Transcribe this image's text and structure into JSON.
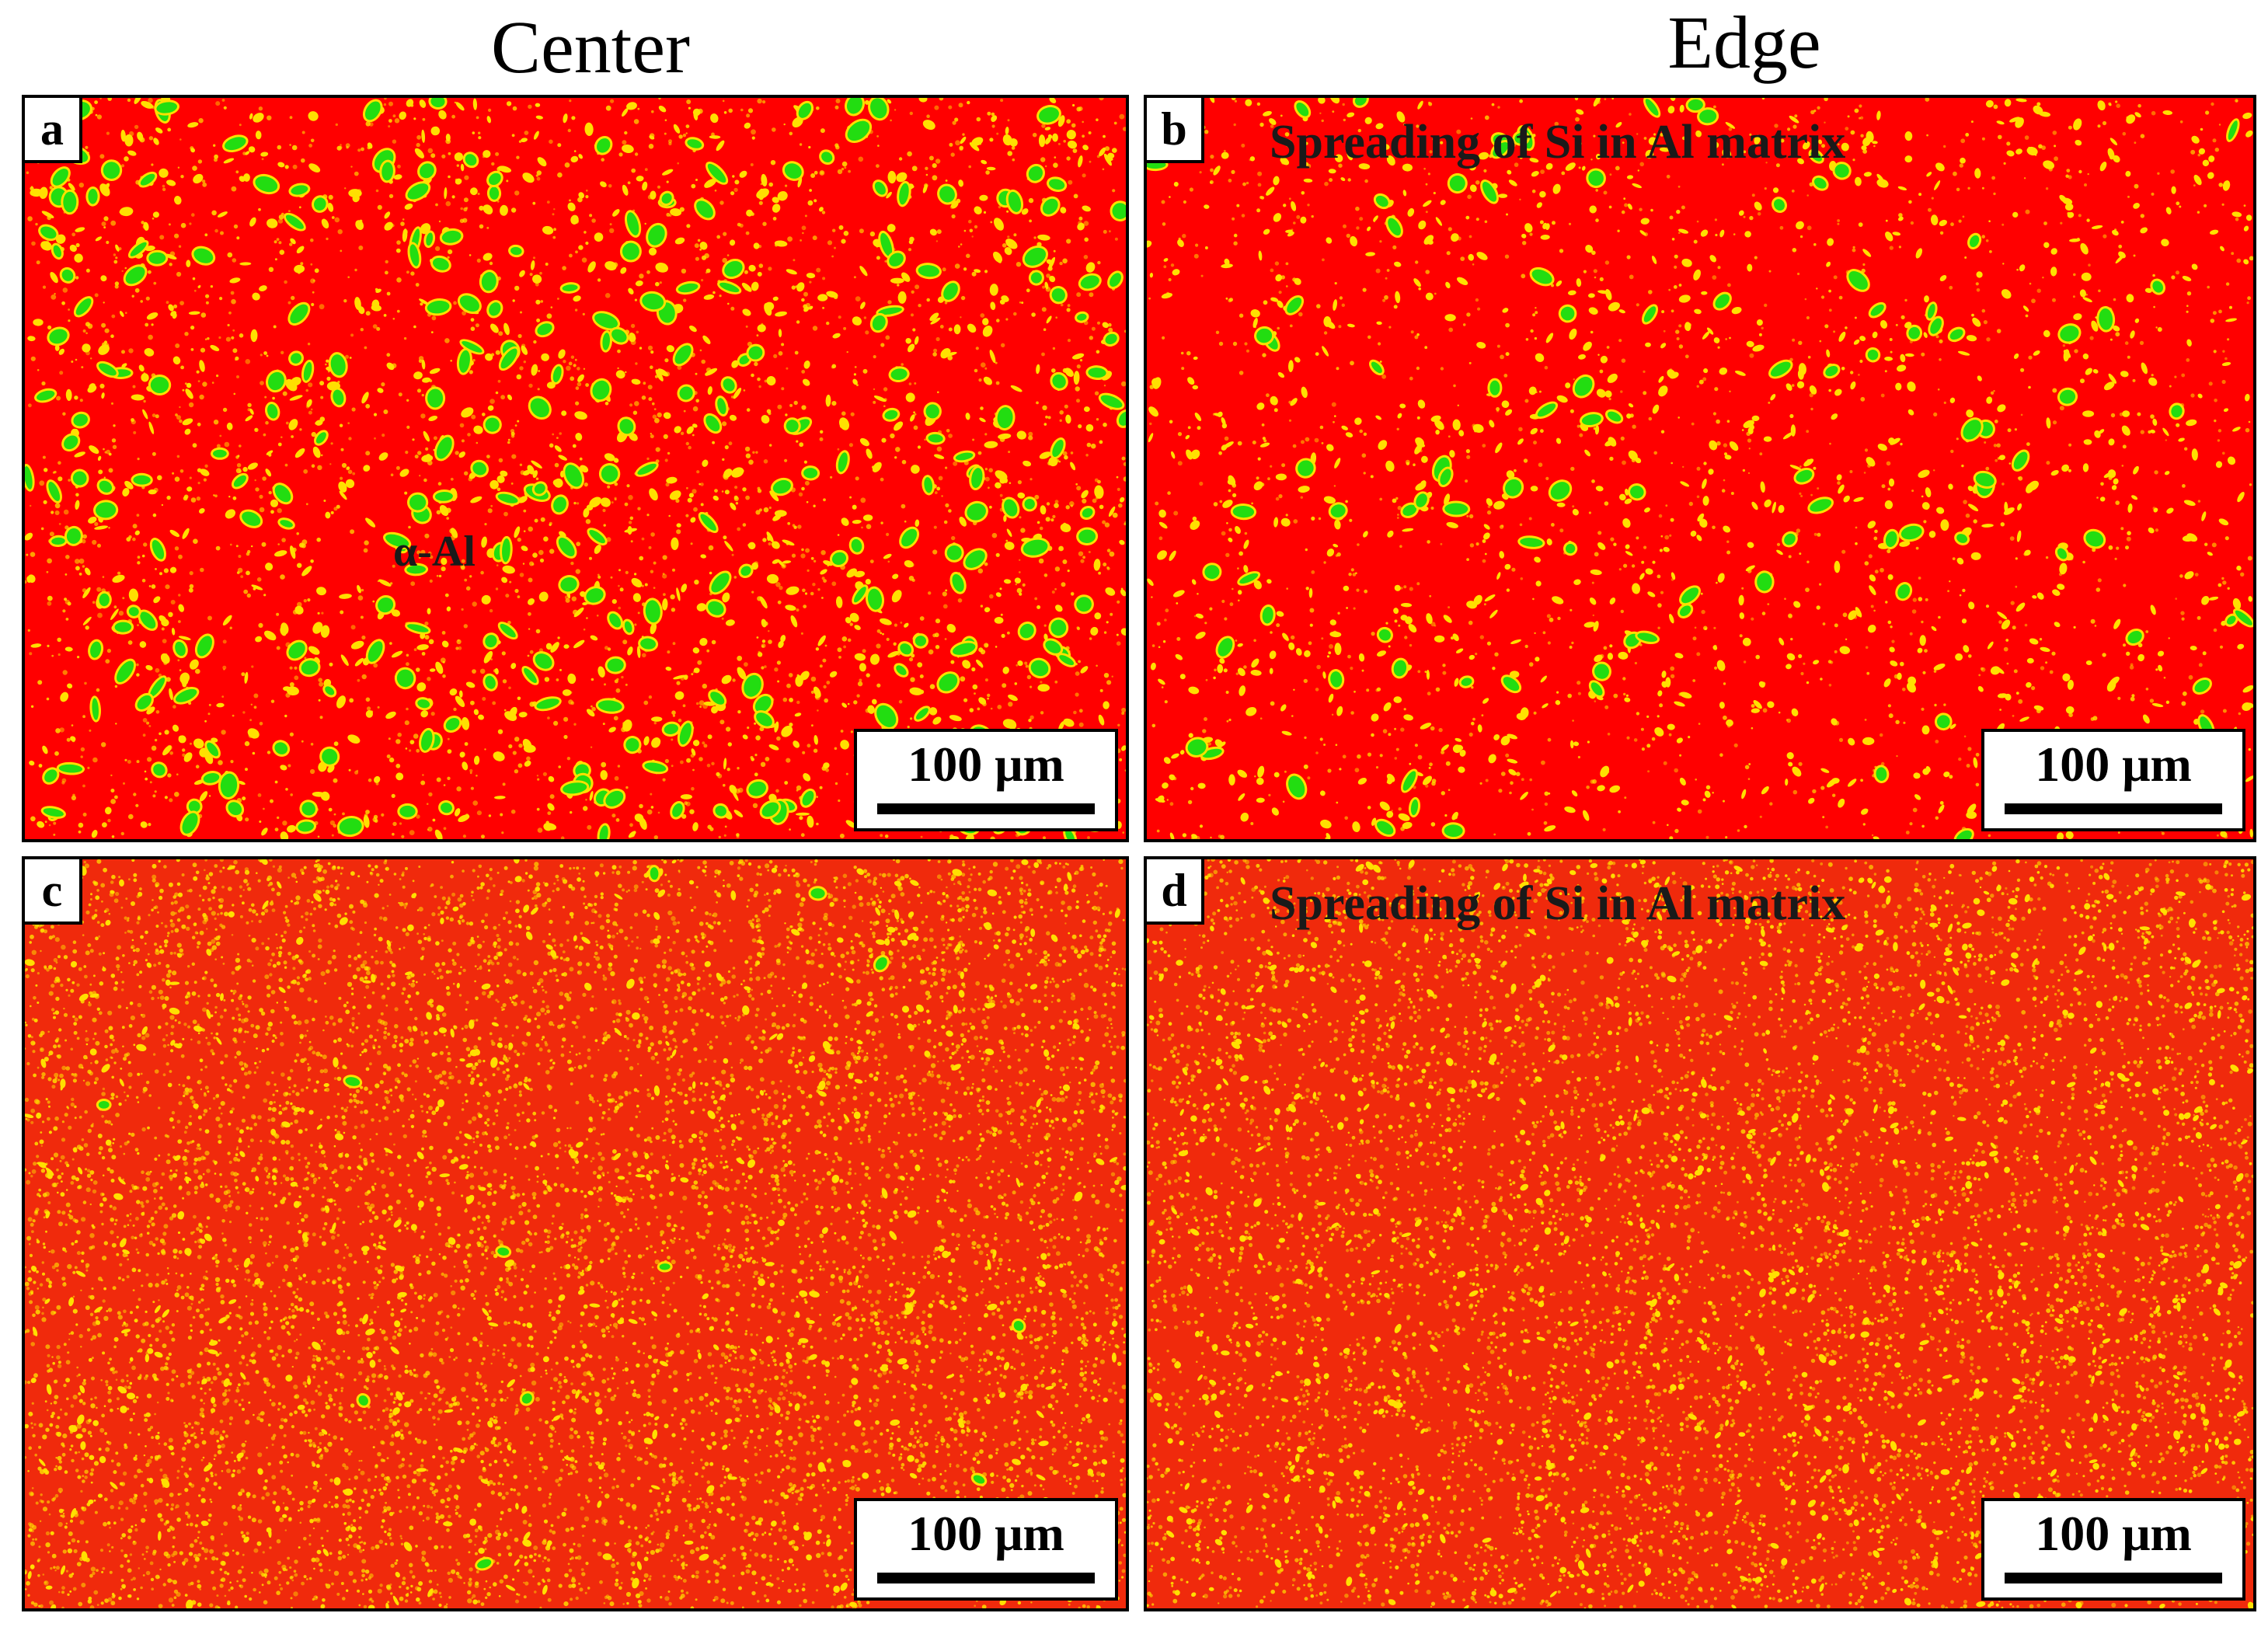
{
  "columns": {
    "left": "Center",
    "right": "Edge"
  },
  "panels": [
    {
      "id": "a",
      "letter": "a",
      "annotation": "α-Al",
      "scale_label": "100 μm"
    },
    {
      "id": "b",
      "letter": "b",
      "annotation": "Spreading of Si in Al matrix",
      "scale_label": "100 μm"
    },
    {
      "id": "c",
      "letter": "c",
      "annotation": "",
      "scale_label": "100 μm"
    },
    {
      "id": "d",
      "letter": "d",
      "annotation": "Spreading of Si in Al matrix",
      "scale_label": "100 μm"
    }
  ],
  "colors": {
    "matrix": "#ff0000",
    "matrix_fine": "#f02a0c",
    "particle_yellow": "#ffe000",
    "particle_green": "#22dd11"
  }
}
